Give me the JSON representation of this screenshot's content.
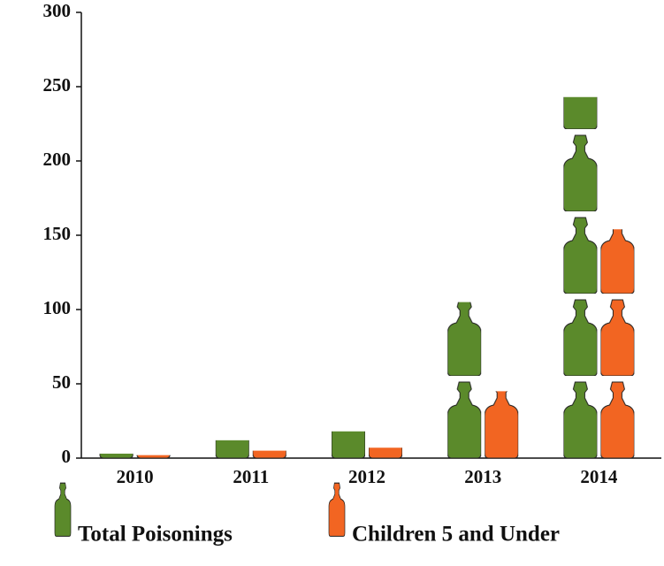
{
  "chart_data": {
    "type": "pictograph-bar",
    "categories": [
      "2010",
      "2011",
      "2012",
      "2013",
      "2014"
    ],
    "series": [
      {
        "name": "Total Poisonings",
        "color": "#5b8a2b",
        "values": [
          3,
          12,
          18,
          105,
          243
        ]
      },
      {
        "name": "Children 5 and Under",
        "color": "#f26522",
        "values": [
          2,
          5,
          7,
          45,
          154
        ]
      }
    ],
    "ylim": [
      0,
      300
    ],
    "yticks": [
      0,
      50,
      100,
      150,
      200,
      250,
      300
    ]
  }
}
